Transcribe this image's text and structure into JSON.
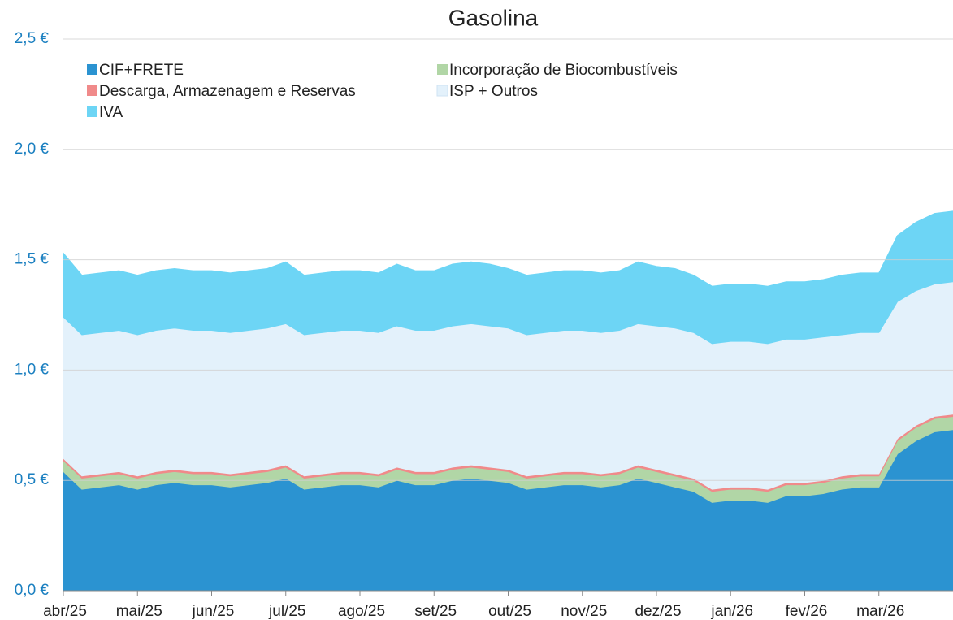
{
  "chart_data": {
    "type": "stacked_area",
    "title": "Gasolina",
    "categories": [
      "abr/25",
      null,
      null,
      null,
      "mai/25",
      null,
      null,
      null,
      "jun/25",
      null,
      null,
      null,
      "jul/25",
      null,
      null,
      null,
      "ago/25",
      null,
      null,
      null,
      "set/25",
      null,
      null,
      null,
      "out/25",
      null,
      null,
      null,
      "nov/25",
      null,
      null,
      null,
      "dez/25",
      null,
      null,
      null,
      "jan/26",
      null,
      null,
      null,
      "fev/26",
      null,
      null,
      null,
      "mar/26",
      null,
      null,
      null,
      null
    ],
    "series": [
      {
        "name": "CIF+FRETE",
        "color": "#2b93d1",
        "values": [
          0.54,
          0.46,
          0.47,
          0.48,
          0.46,
          0.48,
          0.49,
          0.48,
          0.48,
          0.47,
          0.48,
          0.49,
          0.51,
          0.46,
          0.47,
          0.48,
          0.48,
          0.47,
          0.5,
          0.48,
          0.48,
          0.5,
          0.51,
          0.5,
          0.49,
          0.46,
          0.47,
          0.48,
          0.48,
          0.47,
          0.48,
          0.51,
          0.49,
          0.47,
          0.45,
          0.4,
          0.41,
          0.41,
          0.4,
          0.43,
          0.43,
          0.44,
          0.46,
          0.47,
          0.47,
          0.62,
          0.68,
          0.72,
          0.73
        ]
      },
      {
        "name": "Incorporação de Biocombustíveis",
        "color": "#b1d6a6",
        "values": [
          0.05,
          0.05,
          0.05,
          0.05,
          0.05,
          0.05,
          0.05,
          0.05,
          0.05,
          0.05,
          0.05,
          0.05,
          0.05,
          0.05,
          0.05,
          0.05,
          0.05,
          0.05,
          0.05,
          0.05,
          0.05,
          0.05,
          0.05,
          0.05,
          0.05,
          0.05,
          0.05,
          0.05,
          0.05,
          0.05,
          0.05,
          0.05,
          0.05,
          0.05,
          0.05,
          0.05,
          0.05,
          0.05,
          0.05,
          0.05,
          0.05,
          0.05,
          0.05,
          0.05,
          0.05,
          0.06,
          0.06,
          0.06,
          0.06
        ]
      },
      {
        "name": "Descarga, Armazenagem e Reservas",
        "color": "#f08a8a",
        "values": [
          0.01,
          0.01,
          0.01,
          0.01,
          0.01,
          0.01,
          0.01,
          0.01,
          0.01,
          0.01,
          0.01,
          0.01,
          0.01,
          0.01,
          0.01,
          0.01,
          0.01,
          0.01,
          0.01,
          0.01,
          0.01,
          0.01,
          0.01,
          0.01,
          0.01,
          0.01,
          0.01,
          0.01,
          0.01,
          0.01,
          0.01,
          0.01,
          0.01,
          0.01,
          0.01,
          0.01,
          0.01,
          0.01,
          0.01,
          0.01,
          0.01,
          0.01,
          0.01,
          0.01,
          0.01,
          0.01,
          0.01,
          0.01,
          0.01
        ]
      },
      {
        "name": "ISP + Outros",
        "color": "#e3f1fb",
        "values": [
          0.64,
          0.64,
          0.64,
          0.64,
          0.64,
          0.64,
          0.64,
          0.64,
          0.64,
          0.64,
          0.64,
          0.64,
          0.64,
          0.64,
          0.64,
          0.64,
          0.64,
          0.64,
          0.64,
          0.64,
          0.64,
          0.64,
          0.64,
          0.64,
          0.64,
          0.64,
          0.64,
          0.64,
          0.64,
          0.64,
          0.64,
          0.64,
          0.65,
          0.66,
          0.66,
          0.66,
          0.66,
          0.66,
          0.66,
          0.65,
          0.65,
          0.65,
          0.64,
          0.64,
          0.64,
          0.62,
          0.61,
          0.6,
          0.6
        ]
      },
      {
        "name": "IVA",
        "color": "#6dd5f5",
        "values": [
          0.29,
          0.27,
          0.27,
          0.27,
          0.27,
          0.27,
          0.27,
          0.27,
          0.27,
          0.27,
          0.27,
          0.27,
          0.28,
          0.27,
          0.27,
          0.27,
          0.27,
          0.27,
          0.28,
          0.27,
          0.27,
          0.28,
          0.28,
          0.28,
          0.27,
          0.27,
          0.27,
          0.27,
          0.27,
          0.27,
          0.27,
          0.28,
          0.27,
          0.27,
          0.26,
          0.26,
          0.26,
          0.26,
          0.26,
          0.26,
          0.26,
          0.26,
          0.27,
          0.27,
          0.27,
          0.3,
          0.31,
          0.32,
          0.32
        ]
      }
    ],
    "ylim": [
      0,
      2.5
    ],
    "yticks": [
      {
        "value": 0,
        "label": "0,0 €"
      },
      {
        "value": 0.5,
        "label": "0,5 €"
      },
      {
        "value": 1.0,
        "label": "1,0 €"
      },
      {
        "value": 1.5,
        "label": "1,5 €"
      },
      {
        "value": 2.0,
        "label": "2,0 €"
      },
      {
        "value": 2.5,
        "label": "2,5 €"
      }
    ],
    "grid": true
  }
}
